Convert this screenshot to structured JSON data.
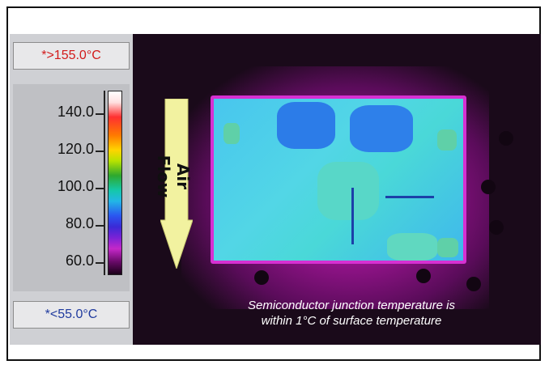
{
  "scale": {
    "max_label": "*>155.0°C",
    "min_label": "*<55.0°C",
    "ticks": [
      "140.0",
      "120.0",
      "100.0",
      "80.0",
      "60.0"
    ]
  },
  "image": {
    "airflow_label": "Air Flow",
    "caption_line1": "Semiconductor junction temperature is",
    "caption_line2": "within 1°C of surface temperature"
  },
  "colors": {
    "background": "#ffffff",
    "max_text": "#d21a1a",
    "min_text": "#1f3a9e",
    "board_edge": "#d630d2",
    "arrow": "#f2f2a0"
  },
  "icons": [
    "air-flow-arrow-icon"
  ]
}
